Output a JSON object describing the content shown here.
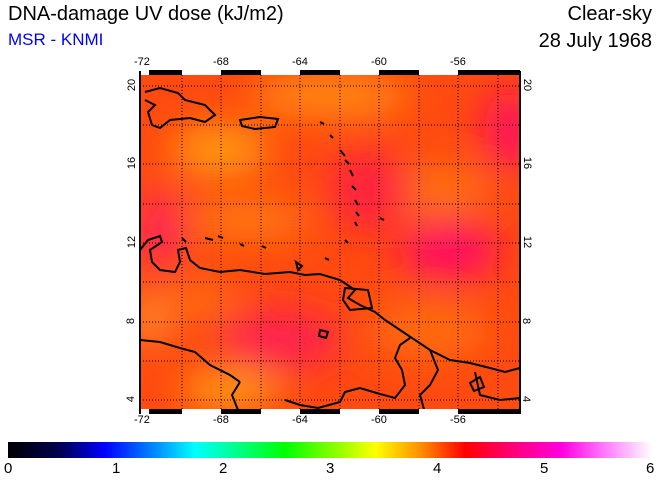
{
  "header": {
    "title": "DNA-damage UV dose (kJ/m2)",
    "organization": "MSR - KNMI",
    "sky_condition": "Clear-sky",
    "date": "28 July 1968"
  },
  "map": {
    "lon_ticks": [
      "-72",
      "-68",
      "-64",
      "-60",
      "-56"
    ],
    "lat_ticks": [
      "4",
      "8",
      "12",
      "16",
      "20"
    ],
    "region": "Caribbean / northern South America",
    "lon_range": [
      -72.2,
      -52.9
    ],
    "lat_range": [
      3.4,
      20.7
    ]
  },
  "colorbar": {
    "labels": [
      "0",
      "1",
      "2",
      "3",
      "4",
      "5",
      "6"
    ],
    "min": 0,
    "max": 6,
    "colors": [
      "#000000",
      "#0000ff",
      "#00ffff",
      "#00ff00",
      "#ffff00",
      "#ff0000",
      "#ff00ff",
      "#ffffff"
    ]
  }
}
